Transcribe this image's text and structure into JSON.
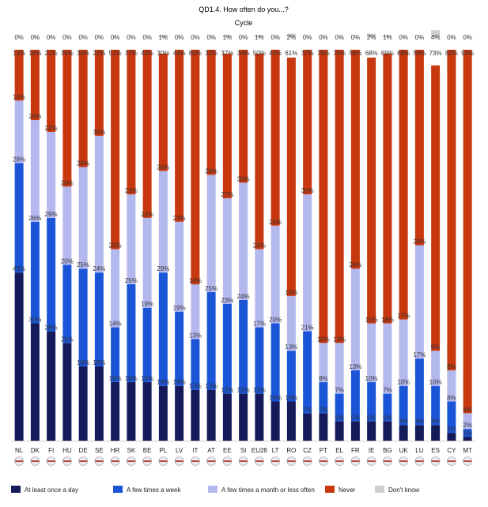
{
  "chart_data": {
    "type": "bar",
    "stacked": true,
    "percent": true,
    "title": "QD1.4. How often do you...?",
    "subtitle": "Cycle",
    "categories": [
      "NL",
      "DK",
      "FI",
      "HU",
      "DE",
      "SE",
      "HR",
      "SK",
      "BE",
      "PL",
      "LV",
      "IT",
      "AT",
      "EE",
      "SI",
      "EU28",
      "LT",
      "RO",
      "CZ",
      "PT",
      "EL",
      "FR",
      "IE",
      "BG",
      "UK",
      "LU",
      "ES",
      "CY",
      "MT"
    ],
    "series": [
      {
        "name": "At least once a day",
        "color": "#141a5a",
        "values": [
          43,
          30,
          28,
          25,
          19,
          19,
          15,
          15,
          15,
          14,
          14,
          13,
          13,
          12,
          12,
          12,
          10,
          10,
          7,
          7,
          5,
          5,
          5,
          5,
          4,
          4,
          4,
          2,
          1
        ]
      },
      {
        "name": "A few times a week",
        "color": "#1a55d8",
        "values": [
          28,
          26,
          29,
          20,
          25,
          24,
          14,
          25,
          19,
          29,
          19,
          13,
          25,
          23,
          24,
          17,
          20,
          13,
          21,
          8,
          7,
          13,
          10,
          7,
          10,
          17,
          10,
          8,
          2
        ]
      },
      {
        "name": "A few times a month or less often",
        "color": "#b3b8ef",
        "values": [
          16,
          26,
          22,
          20,
          26,
          35,
          20,
          23,
          23,
          26,
          23,
          14,
          30,
          27,
          30,
          20,
          25,
          14,
          35,
          10,
          13,
          26,
          15,
          18,
          17,
          29,
          9,
          8,
          4
        ]
      },
      {
        "name": "Never",
        "color": "#c9370f",
        "values": [
          13,
          18,
          21,
          35,
          30,
          22,
          51,
          37,
          43,
          30,
          44,
          60,
          32,
          37,
          34,
          50,
          45,
          61,
          37,
          75,
          75,
          56,
          68,
          69,
          69,
          50,
          73,
          82,
          93
        ]
      },
      {
        "name": "Don't know",
        "color": "#cfcfcf",
        "values": [
          0,
          0,
          0,
          0,
          0,
          0,
          0,
          0,
          0,
          1,
          0,
          0,
          0,
          1,
          0,
          1,
          0,
          2,
          0,
          0,
          0,
          0,
          2,
          1,
          0,
          0,
          4,
          0,
          0
        ]
      }
    ],
    "ylim": [
      0,
      100
    ],
    "legend": "bottom"
  }
}
